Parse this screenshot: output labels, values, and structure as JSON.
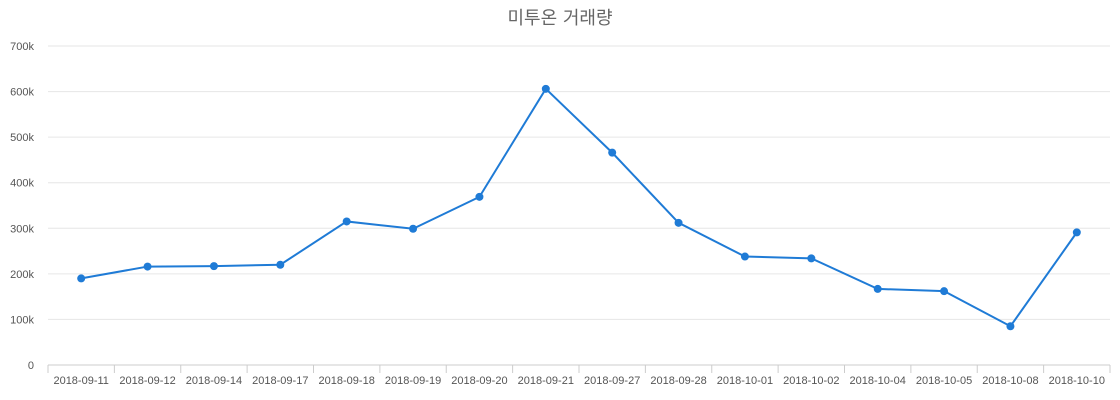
{
  "chart_data": {
    "type": "line",
    "title": "미투온 거래량",
    "xlabel": "",
    "ylabel": "",
    "categories": [
      "2018-09-11",
      "2018-09-12",
      "2018-09-14",
      "2018-09-17",
      "2018-09-18",
      "2018-09-19",
      "2018-09-20",
      "2018-09-21",
      "2018-09-27",
      "2018-09-28",
      "2018-10-01",
      "2018-10-02",
      "2018-10-04",
      "2018-10-05",
      "2018-10-08",
      "2018-10-10"
    ],
    "series": [
      {
        "values": [
          190000,
          216000,
          217000,
          220000,
          315000,
          299000,
          369000,
          606000,
          466000,
          312000,
          238000,
          234000,
          167000,
          162000,
          85000,
          291000
        ]
      }
    ],
    "yticks": [
      0,
      100000,
      200000,
      300000,
      400000,
      500000,
      600000,
      700000
    ],
    "ytick_labels": [
      "0",
      "100k",
      "200k",
      "300k",
      "400k",
      "500k",
      "600k",
      "700k"
    ],
    "ylim": [
      0,
      700000
    ],
    "grid": true,
    "legend": "none",
    "colors": {
      "series": "#1f7bd6",
      "grid": "#e6e6e6",
      "axis": "#cccccc",
      "title": "#666666",
      "tick": "#555555"
    }
  }
}
